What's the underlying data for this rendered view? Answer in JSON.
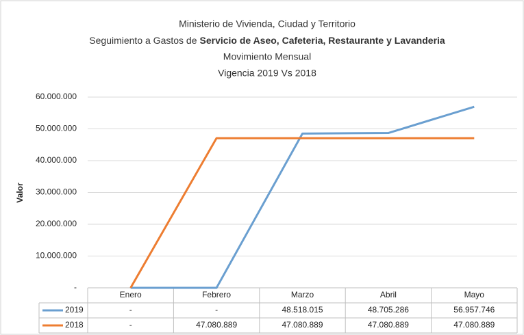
{
  "chart_data": {
    "type": "line",
    "title": "Ministerio de Vivienda, Ciudad y Territorio",
    "subtitle": [
      "Seguimiento a Gastos de",
      "Servicio de Aseo, Cafeteria, Restaurante y Lavanderia"
    ],
    "subtitle2": "Movimiento Mensual",
    "subtitle3": "Vigencia 2019 Vs 2018",
    "y_label": "Valor",
    "categories": [
      "Enero",
      "Febrero",
      "Marzo",
      "Abril",
      "Mayo"
    ],
    "series": [
      {
        "name": "2019",
        "color": "#6a9fd0",
        "values": [
          0,
          0,
          48518015,
          48705286,
          56957746
        ],
        "value_labels": [
          "-",
          "-",
          "48.518.015",
          "48.705.286",
          "56.957.746"
        ]
      },
      {
        "name": "2018",
        "color": "#ed7d31",
        "values": [
          0,
          47080889,
          47080889,
          47080889,
          47080889
        ],
        "value_labels": [
          "-",
          "47.080.889",
          "47.080.889",
          "47.080.889",
          "47.080.889"
        ]
      }
    ],
    "ylim": [
      0,
      60000000
    ],
    "yticks": [
      {
        "value": 0,
        "label": "-"
      },
      {
        "value": 10000000,
        "label": "10.000.000"
      },
      {
        "value": 20000000,
        "label": "20.000.000"
      },
      {
        "value": 30000000,
        "label": "30.000.000"
      },
      {
        "value": 40000000,
        "label": "40.000.000"
      },
      {
        "value": 50000000,
        "label": "50.000.000"
      },
      {
        "value": 60000000,
        "label": "60.000.000"
      }
    ],
    "grid": true
  }
}
